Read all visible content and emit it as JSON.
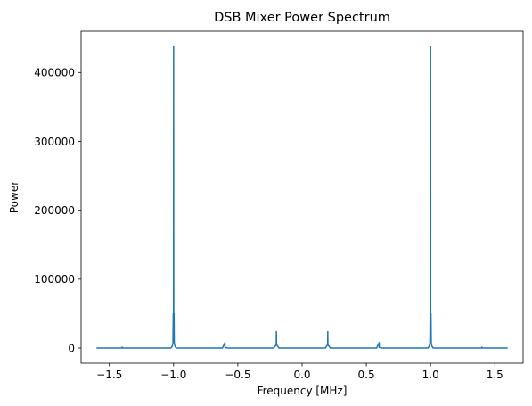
{
  "chart_data": {
    "type": "line",
    "title": "DSB Mixer Power Spectrum",
    "xlabel": "Frequency [MHz]",
    "ylabel": "Power",
    "xlim": [
      -1.72,
      1.72
    ],
    "ylim": [
      -22000,
      460000
    ],
    "grid": false,
    "xticks": [
      -1.5,
      -1.0,
      -0.5,
      0.0,
      0.5,
      1.0,
      1.5
    ],
    "xtick_labels": [
      "−1.5",
      "−1.0",
      "−0.5",
      "0.0",
      "0.5",
      "1.0",
      "1.5"
    ],
    "yticks": [
      0,
      100000,
      200000,
      300000,
      400000
    ],
    "ytick_labels": [
      "0",
      "100000",
      "200000",
      "300000",
      "400000"
    ],
    "series": [
      {
        "color": "#1f77b4",
        "x": [
          -1.6,
          -1.4,
          -1.4,
          -1.4,
          -1.02,
          -1.01,
          -1.005,
          -1.003,
          -1.001,
          -1.0,
          -0.999,
          -0.997,
          -0.995,
          -0.99,
          -0.98,
          -0.62,
          -0.6,
          -0.6,
          -0.6,
          -0.58,
          -0.22,
          -0.201,
          -0.2,
          -0.199,
          -0.18,
          0.18,
          0.199,
          0.2,
          0.201,
          0.22,
          0.58,
          0.6,
          0.6,
          0.6,
          0.62,
          0.98,
          0.99,
          0.995,
          0.997,
          0.999,
          1.0,
          1.001,
          1.003,
          1.005,
          1.01,
          1.02,
          1.4,
          1.4,
          1.4,
          1.6
        ],
        "y": [
          0,
          0,
          1500,
          0,
          0,
          3000,
          8000,
          50000,
          25000,
          438000,
          25000,
          50000,
          8000,
          3000,
          0,
          0,
          8000,
          8000,
          1000,
          0,
          0,
          5000,
          24000,
          5000,
          0,
          0,
          5000,
          24000,
          5000,
          0,
          0,
          8000,
          8000,
          1000,
          0,
          0,
          3000,
          8000,
          50000,
          25000,
          438000,
          25000,
          50000,
          8000,
          3000,
          0,
          0,
          1500,
          0,
          0
        ]
      }
    ]
  }
}
